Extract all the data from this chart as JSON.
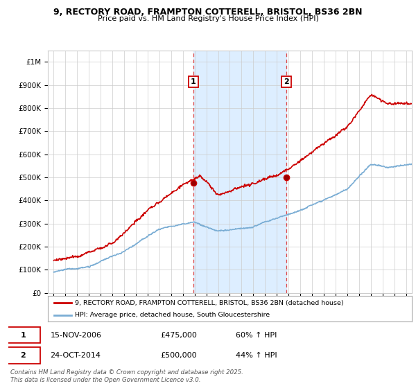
{
  "title": "9, RECTORY ROAD, FRAMPTON COTTERELL, BRISTOL, BS36 2BN",
  "subtitle": "Price paid vs. HM Land Registry's House Price Index (HPI)",
  "legend_line1": "9, RECTORY ROAD, FRAMPTON COTTERELL, BRISTOL, BS36 2BN (detached house)",
  "legend_line2": "HPI: Average price, detached house, South Gloucestershire",
  "footnote": "Contains HM Land Registry data © Crown copyright and database right 2025.\nThis data is licensed under the Open Government Licence v3.0.",
  "transaction1_date": "15-NOV-2006",
  "transaction1_price": "£475,000",
  "transaction1_hpi": "60% ↑ HPI",
  "transaction1_year": 2006.88,
  "transaction1_price_val": 475000,
  "transaction2_date": "24-OCT-2014",
  "transaction2_price": "£500,000",
  "transaction2_hpi": "44% ↑ HPI",
  "transaction2_year": 2014.8,
  "transaction2_price_val": 500000,
  "red_color": "#cc0000",
  "blue_color": "#7aadd4",
  "dashed_color": "#dd4444",
  "background_color": "#ffffff",
  "grid_color": "#cccccc",
  "highlight_bg": "#ddeeff",
  "ylim_max": 1050000,
  "ylim_min": 0,
  "xlim_min": 1994.5,
  "xlim_max": 2025.5,
  "yticks": [
    0,
    100000,
    200000,
    300000,
    400000,
    500000,
    600000,
    700000,
    800000,
    900000,
    1000000
  ],
  "ytick_labels": [
    "£0",
    "£100K",
    "£200K",
    "£300K",
    "£400K",
    "£500K",
    "£600K",
    "£700K",
    "£800K",
    "£900K",
    "£1M"
  ]
}
